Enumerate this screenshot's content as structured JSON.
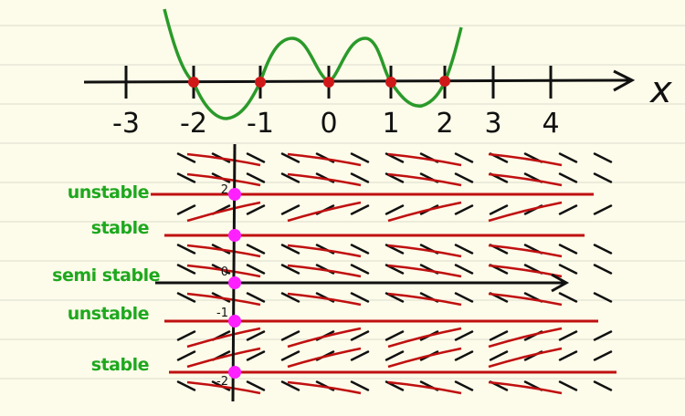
{
  "number_line": {
    "ticks": [
      "-3",
      "-2",
      "-1",
      "0",
      "1",
      "2",
      "3",
      "4"
    ],
    "axis_label": "x"
  },
  "phase_lines": [
    {
      "label": "unstable",
      "level": "2"
    },
    {
      "label": "stable"
    },
    {
      "label": "semi stable",
      "level": "0"
    },
    {
      "label": "unstable",
      "level": "-1"
    },
    {
      "label": "stable",
      "level": "-2"
    }
  ]
}
